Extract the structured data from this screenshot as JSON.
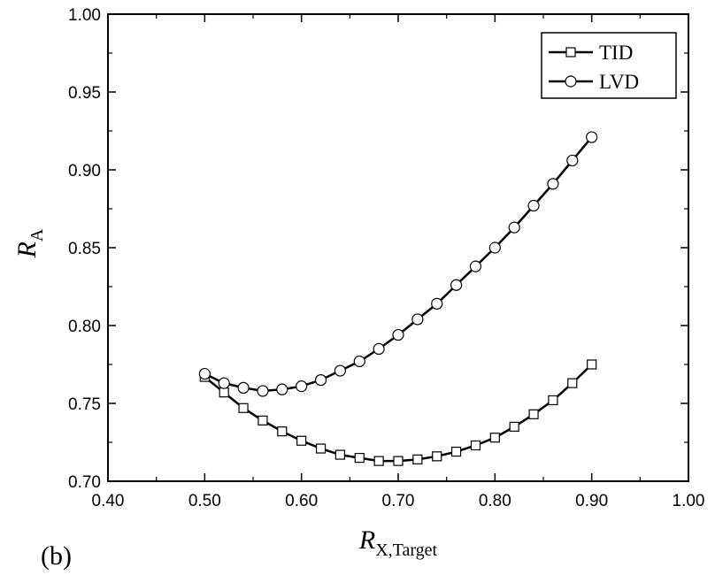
{
  "panel_label": "(b)",
  "chart_data": {
    "type": "line",
    "xlabel": {
      "main": "R",
      "sub": "X,Target"
    },
    "ylabel": {
      "main": "R",
      "sub": "A"
    },
    "xlim": [
      0.4,
      1.0
    ],
    "ylim": [
      0.7,
      1.0
    ],
    "x_ticks": [
      "0.40",
      "0.50",
      "0.60",
      "0.70",
      "0.80",
      "0.90",
      "1.00"
    ],
    "y_ticks": [
      "0.70",
      "0.75",
      "0.80",
      "0.85",
      "0.90",
      "0.95",
      "1.00"
    ],
    "grid": false,
    "legend_position": "top-right",
    "x": [
      0.5,
      0.52,
      0.54,
      0.56,
      0.58,
      0.6,
      0.62,
      0.64,
      0.66,
      0.68,
      0.7,
      0.72,
      0.74,
      0.76,
      0.78,
      0.8,
      0.82,
      0.84,
      0.86,
      0.88,
      0.9
    ],
    "series": [
      {
        "name": "TID",
        "marker": "square",
        "values": [
          0.767,
          0.757,
          0.747,
          0.739,
          0.732,
          0.726,
          0.721,
          0.717,
          0.715,
          0.713,
          0.713,
          0.714,
          0.716,
          0.719,
          0.723,
          0.728,
          0.735,
          0.743,
          0.752,
          0.763,
          0.775
        ]
      },
      {
        "name": "LVD",
        "marker": "circle",
        "values": [
          0.769,
          0.763,
          0.76,
          0.758,
          0.759,
          0.761,
          0.765,
          0.771,
          0.777,
          0.785,
          0.794,
          0.804,
          0.814,
          0.826,
          0.838,
          0.85,
          0.863,
          0.877,
          0.891,
          0.906,
          0.921
        ]
      }
    ]
  }
}
